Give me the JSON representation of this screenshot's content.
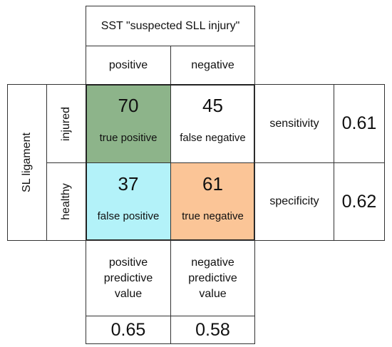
{
  "test": {
    "title": "SST \"suspected SLL injury\"",
    "positive": "positive",
    "negative": "negative"
  },
  "condition": {
    "title": "SL ligament",
    "injured": "injured",
    "healthy": "healthy"
  },
  "cells": {
    "tp": {
      "value": "70",
      "label": "true positive",
      "color": "#8db48a"
    },
    "fn": {
      "value": "45",
      "label": "false negative",
      "color": "#ffffff"
    },
    "fp": {
      "value": "37",
      "label": "false positive",
      "color": "#b3f2f9"
    },
    "tn": {
      "value": "61",
      "label": "true negative",
      "color": "#fbc597"
    }
  },
  "metrics": {
    "sensitivity_label": "sensitivity",
    "sensitivity_value": "0.61",
    "specificity_label": "specificity",
    "specificity_value": "0.62",
    "ppv_lines": [
      "positive",
      "predictive",
      "value"
    ],
    "ppv_value": "0.65",
    "npv_lines": [
      "negative",
      "predictive",
      "value"
    ],
    "npv_value": "0.58"
  }
}
